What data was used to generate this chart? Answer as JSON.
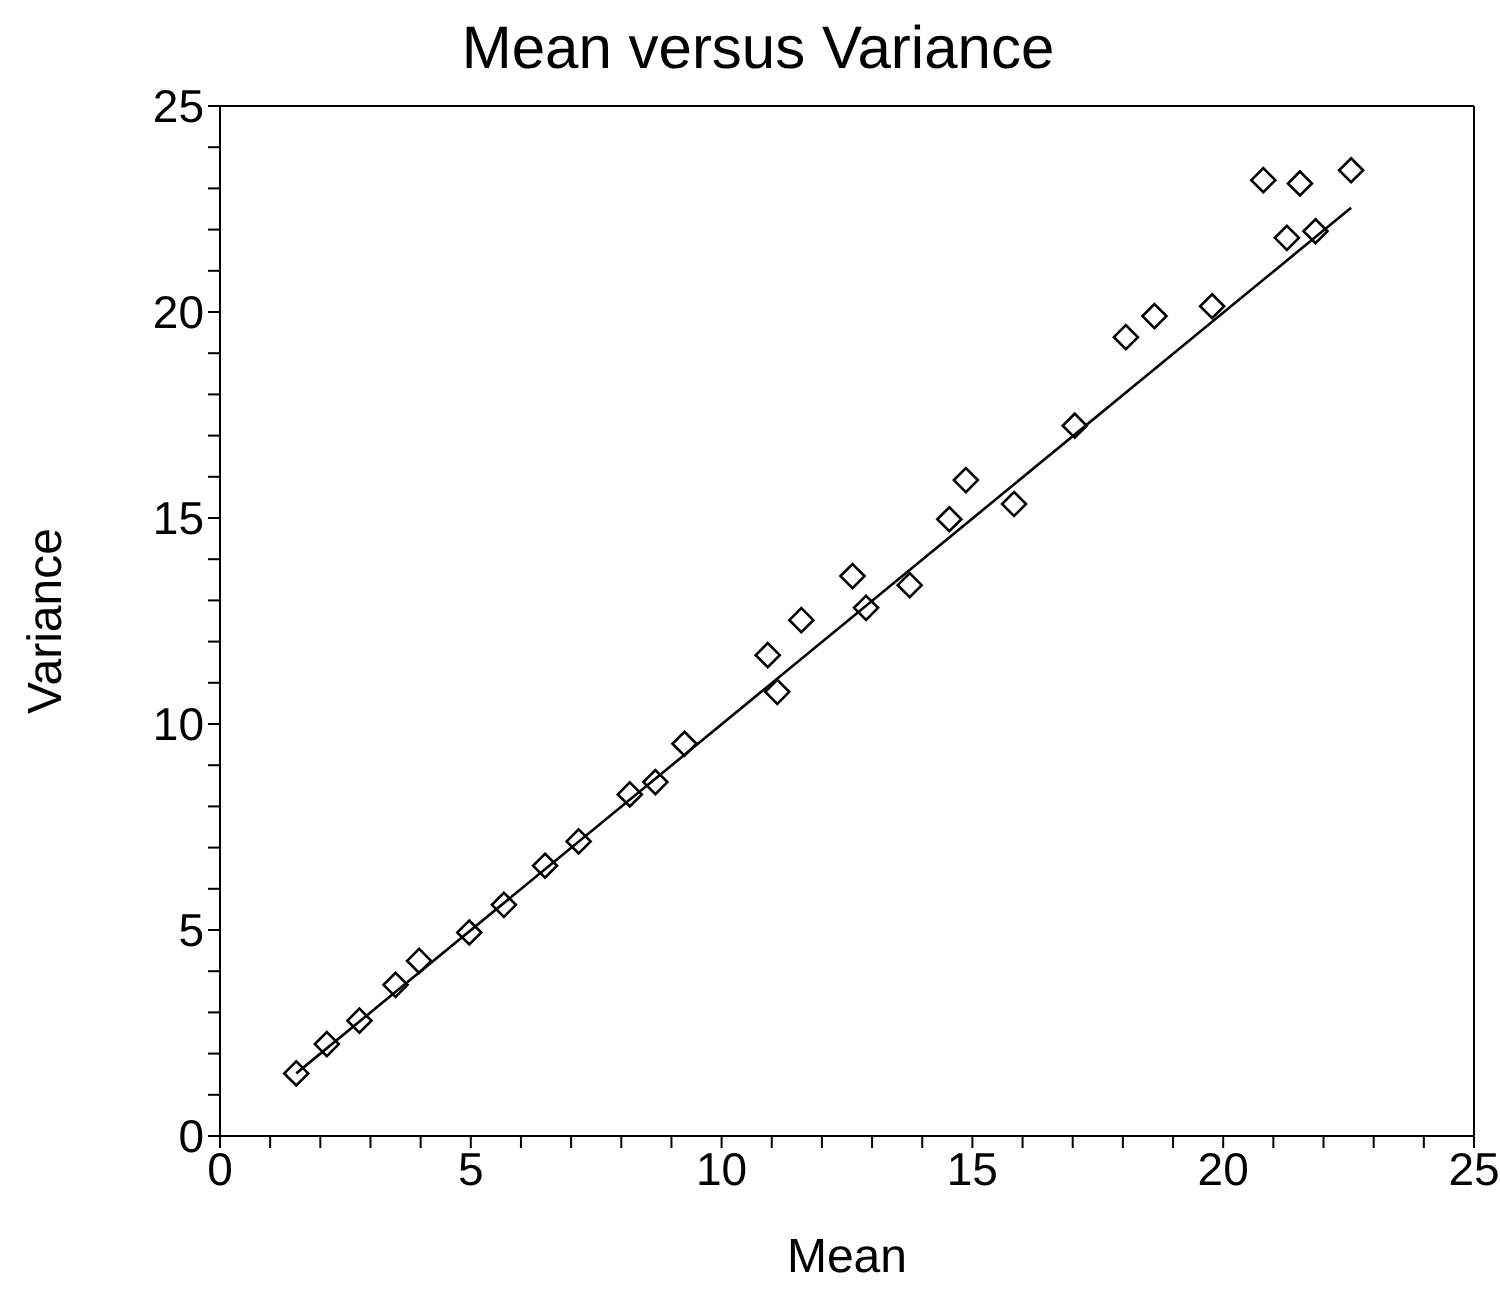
{
  "chart_data": {
    "type": "scatter",
    "title": "Mean versus Variance",
    "xlabel": "Mean",
    "ylabel": "Variance",
    "xlim": [
      0,
      25
    ],
    "ylim": [
      0,
      25
    ],
    "xticks": [
      0,
      {
        "value": 1,
        "label": null
      },
      {
        "value": 2,
        "label": null
      },
      {
        "value": 3,
        "label": null
      },
      {
        "value": 4,
        "label": null
      },
      5,
      {
        "value": 6,
        "label": null
      },
      {
        "value": 7,
        "label": null
      },
      {
        "value": 8,
        "label": null
      },
      {
        "value": 9,
        "label": null
      },
      10,
      {
        "value": 11,
        "label": null
      },
      {
        "value": 12,
        "label": null
      },
      {
        "value": 13,
        "label": null
      },
      {
        "value": 14,
        "label": null
      },
      15,
      {
        "value": 16,
        "label": null
      },
      {
        "value": 17,
        "label": null
      },
      {
        "value": 18,
        "label": null
      },
      {
        "value": 19,
        "label": null
      },
      20,
      {
        "value": 21,
        "label": null
      },
      {
        "value": 22,
        "label": null
      },
      {
        "value": 23,
        "label": null
      },
      {
        "value": 24,
        "label": null
      },
      25
    ],
    "yticks": [
      0,
      {
        "value": 1,
        "label": null
      },
      {
        "value": 2,
        "label": null
      },
      {
        "value": 3,
        "label": null
      },
      {
        "value": 4,
        "label": null
      },
      5,
      {
        "value": 6,
        "label": null
      },
      {
        "value": 7,
        "label": null
      },
      {
        "value": 8,
        "label": null
      },
      {
        "value": 9,
        "label": null
      },
      10,
      {
        "value": 11,
        "label": null
      },
      {
        "value": 12,
        "label": null
      },
      {
        "value": 13,
        "label": null
      },
      {
        "value": 14,
        "label": null
      },
      15,
      {
        "value": 16,
        "label": null
      },
      {
        "value": 17,
        "label": null
      },
      {
        "value": 18,
        "label": null
      },
      {
        "value": 19,
        "label": null
      },
      20,
      {
        "value": 21,
        "label": null
      },
      {
        "value": 22,
        "label": null
      },
      {
        "value": 23,
        "label": null
      },
      {
        "value": 24,
        "label": null
      },
      25
    ],
    "grid": false,
    "legend": false,
    "marker": "diamond",
    "series": [
      {
        "color": "#000000",
        "x": [
          1.52,
          2.13,
          2.78,
          3.5,
          3.97,
          4.97,
          5.66,
          6.48,
          7.15,
          8.17,
          8.68,
          9.26,
          10.92,
          11.11,
          11.59,
          12.61,
          12.88,
          13.75,
          14.54,
          14.87,
          15.83,
          17.04,
          18.06,
          18.63,
          19.78,
          20.8,
          21.27,
          21.53,
          21.84,
          22.55
        ],
        "values": [
          1.52,
          2.23,
          2.8,
          3.67,
          4.25,
          4.94,
          5.61,
          6.56,
          7.15,
          8.29,
          8.59,
          9.52,
          11.67,
          10.78,
          12.52,
          13.59,
          12.82,
          13.37,
          14.97,
          15.92,
          15.34,
          17.24,
          19.39,
          19.9,
          20.14,
          23.2,
          21.8,
          23.12,
          21.96,
          23.44
        ]
      },
      {
        "type": "line",
        "color": "#000000",
        "marker": "none",
        "line_style": "solid",
        "x": [
          1.52,
          22.55
        ],
        "values": [
          1.52,
          22.53
        ]
      }
    ]
  }
}
